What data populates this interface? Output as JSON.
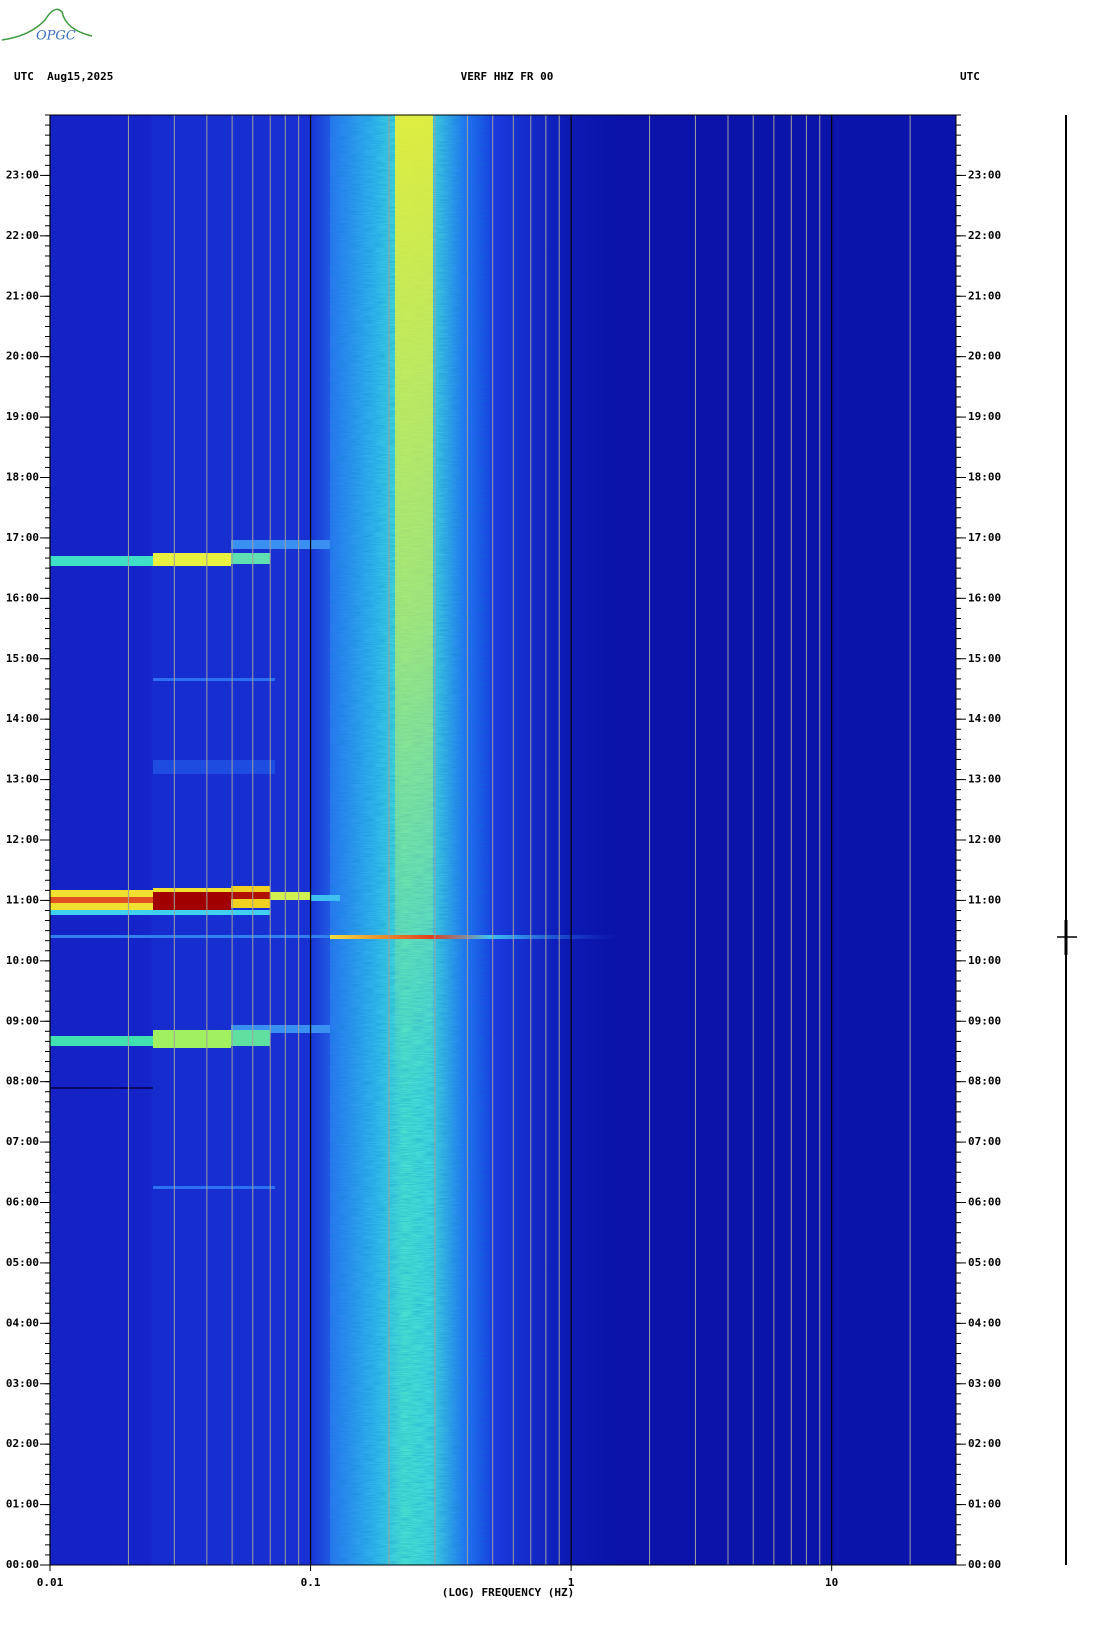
{
  "logo": "OPGC",
  "chart_data": {
    "type": "spectrogram",
    "date_label": "UTC  Aug15,2025",
    "title": "VERF HHZ FR 00",
    "timezone_label": "UTC",
    "x_label": "(LOG) FREQUENCY (HZ)",
    "xscale": "log",
    "xlim": [
      0.01,
      30
    ],
    "xticks": [
      0.01,
      0.1,
      1,
      10
    ],
    "ylim": [
      0,
      24
    ],
    "yticks": [
      {
        "value": 0,
        "label": "00:00"
      },
      {
        "value": 1,
        "label": "01:00"
      },
      {
        "value": 2,
        "label": "02:00"
      },
      {
        "value": 3,
        "label": "03:00"
      },
      {
        "value": 4,
        "label": "04:00"
      },
      {
        "value": 5,
        "label": "05:00"
      },
      {
        "value": 6,
        "label": "06:00"
      },
      {
        "value": 7,
        "label": "07:00"
      },
      {
        "value": 8,
        "label": "08:00"
      },
      {
        "value": 9,
        "label": "09:00"
      },
      {
        "value": 10,
        "label": "10:00"
      },
      {
        "value": 11,
        "label": "11:00"
      },
      {
        "value": 12,
        "label": "12:00"
      },
      {
        "value": 13,
        "label": "13:00"
      },
      {
        "value": 14,
        "label": "14:00"
      },
      {
        "value": 15,
        "label": "15:00"
      },
      {
        "value": 16,
        "label": "16:00"
      },
      {
        "value": 17,
        "label": "17:00"
      },
      {
        "value": 18,
        "label": "18:00"
      },
      {
        "value": 19,
        "label": "19:00"
      },
      {
        "value": 20,
        "label": "20:00"
      },
      {
        "value": 21,
        "label": "21:00"
      },
      {
        "value": 22,
        "label": "22:00"
      },
      {
        "value": 23,
        "label": "23:00"
      }
    ]
  }
}
